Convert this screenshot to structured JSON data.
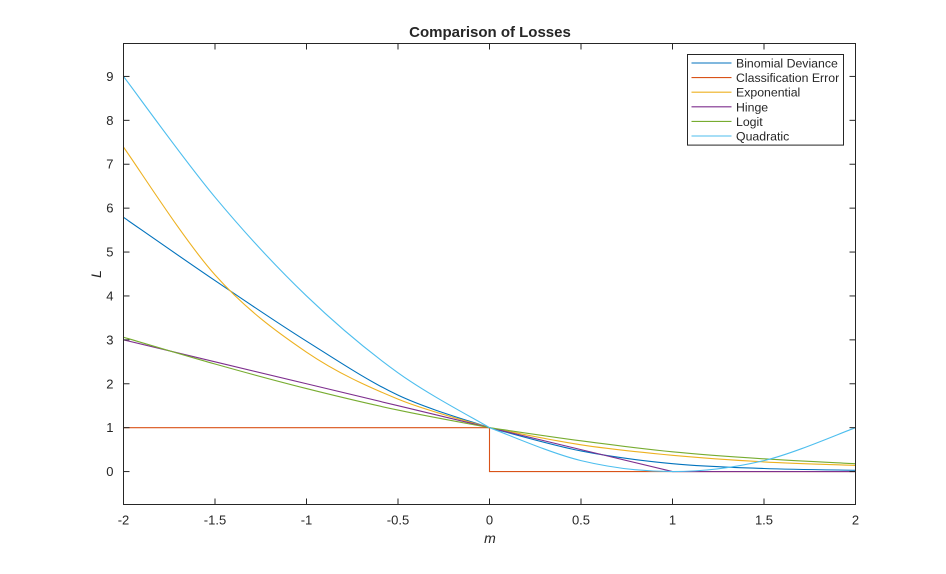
{
  "chart_data": {
    "type": "line",
    "title": "Comparison of Losses",
    "xlabel": "m",
    "ylabel": "L",
    "xlim": [
      -2,
      2
    ],
    "ylim": [
      -0.75,
      9.75
    ],
    "xticks": [
      -2,
      -1.5,
      -1,
      -0.5,
      0,
      0.5,
      1,
      1.5,
      2
    ],
    "xtick_labels": [
      "-2",
      "-1.5",
      "-1",
      "-0.5",
      "0",
      "0.5",
      "1",
      "1.5",
      "2"
    ],
    "yticks": [
      0,
      1,
      2,
      3,
      4,
      5,
      6,
      7,
      8,
      9
    ],
    "ytick_labels": [
      "0",
      "1",
      "2",
      "3",
      "4",
      "5",
      "6",
      "7",
      "8",
      "9"
    ],
    "grid": false,
    "legend_position": "top-right",
    "x": [
      -2.0,
      -1.5,
      -1.0,
      -0.5,
      0.0,
      0.0,
      0.5,
      1.0,
      1.5,
      2.0
    ],
    "series": [
      {
        "name": "Binomial Deviance",
        "color": "#0072BD",
        "values": [
          5.79,
          4.35,
          2.97,
          1.74,
          1.0,
          1.0,
          0.47,
          0.18,
          0.07,
          0.03
        ]
      },
      {
        "name": "Classification Error",
        "color": "#D95319",
        "values": [
          1.0,
          1.0,
          1.0,
          1.0,
          1.0,
          0.0,
          0.0,
          0.0,
          0.0,
          0.0
        ]
      },
      {
        "name": "Exponential",
        "color": "#EDB120",
        "values": [
          7.39,
          4.48,
          2.72,
          1.65,
          1.0,
          1.0,
          0.61,
          0.37,
          0.22,
          0.14
        ]
      },
      {
        "name": "Hinge",
        "color": "#7E2F8E",
        "values": [
          3.0,
          2.5,
          2.0,
          1.5,
          1.0,
          1.0,
          0.5,
          0.0,
          0.0,
          0.0
        ]
      },
      {
        "name": "Logit",
        "color": "#77AC30",
        "values": [
          3.06,
          2.45,
          1.89,
          1.4,
          1.0,
          1.0,
          0.7,
          0.45,
          0.29,
          0.18
        ]
      },
      {
        "name": "Quadratic",
        "color": "#4DBEEE",
        "values": [
          9.0,
          6.25,
          4.0,
          2.25,
          1.0,
          1.0,
          0.25,
          0.0,
          0.25,
          1.0
        ]
      }
    ]
  }
}
